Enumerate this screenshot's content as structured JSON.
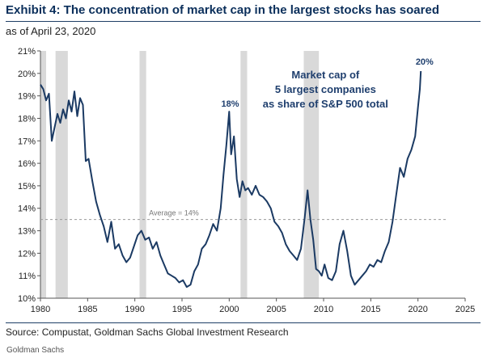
{
  "title": "Exhibit 4: The concentration of market cap in the largest stocks has soared",
  "subtitle": "as of April 23, 2020",
  "source": "Source: Compustat, Goldman Sachs Global Investment Research",
  "footer": "Goldman Sachs",
  "colors": {
    "line": "#1b3a63",
    "recession": "#d9d9d9",
    "average": "#9a9a9a",
    "annotation": "#1f3f6e"
  },
  "chart_data": {
    "type": "line",
    "title": "",
    "xlabel": "",
    "ylabel": "",
    "xlim": [
      1980,
      2025
    ],
    "ylim": [
      10,
      21
    ],
    "x_ticks": [
      1980,
      1985,
      1990,
      1995,
      2000,
      2005,
      2010,
      2015,
      2020,
      2025
    ],
    "y_ticks": [
      "10%",
      "11%",
      "12%",
      "13%",
      "14%",
      "15%",
      "16%",
      "17%",
      "18%",
      "19%",
      "20%",
      "21%"
    ],
    "grid": false,
    "legend": "none",
    "annotations": {
      "series_label": [
        "Market cap of",
        "5 largest companies",
        "as share of S&P 500 total"
      ],
      "peak_2000": "18%",
      "peak_2020": "20%",
      "average_label": "Average = 14%"
    },
    "average_line": 13.5,
    "recession_bands": [
      [
        1980.0,
        1980.6
      ],
      [
        1981.6,
        1982.9
      ],
      [
        1990.5,
        1991.2
      ],
      [
        2001.2,
        2001.9
      ],
      [
        2007.9,
        2009.5
      ]
    ],
    "series": [
      {
        "name": "",
        "x": [
          1980.0,
          1980.3,
          1980.6,
          1980.9,
          1981.2,
          1981.5,
          1981.8,
          1982.1,
          1982.4,
          1982.7,
          1983.0,
          1983.3,
          1983.6,
          1983.9,
          1984.2,
          1984.5,
          1984.8,
          1985.1,
          1985.5,
          1985.9,
          1986.3,
          1986.7,
          1987.1,
          1987.5,
          1987.9,
          1988.3,
          1988.7,
          1989.1,
          1989.5,
          1989.9,
          1990.3,
          1990.7,
          1991.1,
          1991.5,
          1991.9,
          1992.3,
          1992.7,
          1993.1,
          1993.5,
          1993.9,
          1994.3,
          1994.7,
          1995.1,
          1995.5,
          1995.9,
          1996.3,
          1996.7,
          1997.1,
          1997.5,
          1997.9,
          1998.3,
          1998.7,
          1999.1,
          1999.4,
          1999.7,
          2000.0,
          2000.2,
          2000.5,
          2000.8,
          2001.1,
          2001.4,
          2001.7,
          2002.0,
          2002.4,
          2002.8,
          2003.2,
          2003.6,
          2004.0,
          2004.4,
          2004.8,
          2005.2,
          2005.6,
          2006.0,
          2006.4,
          2006.8,
          2007.2,
          2007.6,
          2008.0,
          2008.3,
          2008.6,
          2008.9,
          2009.2,
          2009.5,
          2009.8,
          2010.1,
          2010.5,
          2010.9,
          2011.3,
          2011.7,
          2012.1,
          2012.5,
          2012.9,
          2013.3,
          2013.7,
          2014.1,
          2014.5,
          2014.9,
          2015.3,
          2015.7,
          2016.1,
          2016.5,
          2016.9,
          2017.3,
          2017.7,
          2018.1,
          2018.5,
          2018.9,
          2019.3,
          2019.7,
          2020.0,
          2020.2,
          2020.3
        ],
        "values": [
          19.5,
          19.3,
          18.8,
          19.1,
          17.0,
          17.6,
          18.2,
          17.8,
          18.4,
          18.0,
          18.8,
          18.3,
          19.2,
          18.1,
          18.9,
          18.6,
          16.1,
          16.2,
          15.2,
          14.3,
          13.7,
          13.2,
          12.5,
          13.4,
          12.2,
          12.4,
          11.9,
          11.6,
          11.8,
          12.3,
          12.8,
          13.0,
          12.6,
          12.7,
          12.2,
          12.5,
          11.9,
          11.5,
          11.1,
          11.0,
          10.9,
          10.7,
          10.8,
          10.5,
          10.6,
          11.2,
          11.5,
          12.2,
          12.4,
          12.8,
          13.3,
          13.0,
          14.0,
          15.5,
          16.8,
          18.3,
          16.4,
          17.2,
          15.3,
          14.5,
          15.2,
          14.8,
          14.9,
          14.6,
          15.0,
          14.6,
          14.5,
          14.3,
          14.0,
          13.4,
          13.2,
          12.9,
          12.4,
          12.1,
          11.9,
          11.7,
          12.2,
          13.6,
          14.8,
          13.5,
          12.6,
          11.3,
          11.2,
          11.0,
          11.5,
          10.9,
          10.8,
          11.2,
          12.4,
          13.0,
          12.1,
          11.0,
          10.6,
          10.8,
          11.0,
          11.2,
          11.5,
          11.4,
          11.7,
          11.6,
          12.1,
          12.5,
          13.4,
          14.6,
          15.8,
          15.4,
          16.2,
          16.6,
          17.2,
          18.5,
          19.3,
          20.1
        ]
      }
    ]
  }
}
